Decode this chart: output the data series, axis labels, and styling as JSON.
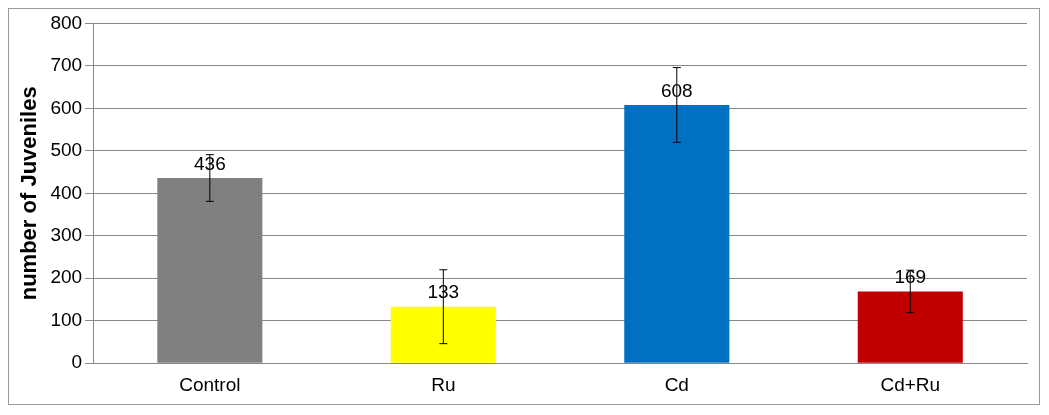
{
  "chart_data": {
    "type": "bar",
    "ylabel": "number of Juveniles",
    "categories": [
      "Control",
      "Ru",
      "Cd",
      "Cd+Ru"
    ],
    "values": [
      436,
      133,
      608,
      169
    ],
    "colors": [
      "#808080",
      "#ffff00",
      "#0070c0",
      "#c00000"
    ],
    "errors": [
      55,
      87,
      88,
      50
    ],
    "ylim": [
      0,
      800
    ],
    "yticks": [
      0,
      100,
      200,
      300,
      400,
      500,
      600,
      700,
      800
    ],
    "grid": "y",
    "data_labels": true,
    "legend": false
  }
}
